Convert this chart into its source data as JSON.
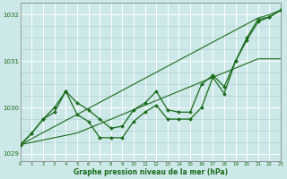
{
  "x": [
    0,
    1,
    2,
    3,
    4,
    5,
    6,
    7,
    8,
    9,
    10,
    11,
    12,
    13,
    14,
    15,
    16,
    17,
    18,
    19,
    20,
    21,
    22,
    23
  ],
  "line_main": [
    1029.2,
    1029.45,
    1029.75,
    1029.9,
    1030.35,
    1029.85,
    1029.7,
    1029.35,
    1029.35,
    1029.35,
    1029.7,
    1029.9,
    1030.05,
    1029.75,
    1029.75,
    1029.75,
    1030.0,
    1030.65,
    1030.3,
    1031.0,
    1031.5,
    1031.9,
    1031.95,
    1032.1
  ],
  "line_secondary": [
    1029.2,
    1029.45,
    1029.75,
    1030.0,
    1030.35,
    1030.1,
    1029.95,
    1029.75,
    1029.55,
    1029.6,
    1029.95,
    1030.1,
    1030.35,
    1029.95,
    1029.9,
    1029.9,
    1030.5,
    1030.7,
    1030.45,
    1031.0,
    1031.45,
    1031.85,
    1031.95,
    1032.1
  ],
  "line_trend1": [
    1029.2,
    1029.33,
    1029.46,
    1029.59,
    1029.72,
    1029.85,
    1029.98,
    1030.11,
    1030.24,
    1030.37,
    1030.5,
    1030.63,
    1030.76,
    1030.89,
    1031.02,
    1031.15,
    1031.28,
    1031.41,
    1031.54,
    1031.67,
    1031.8,
    1031.93,
    1032.0,
    1032.1
  ],
  "line_trend2": [
    1029.2,
    1029.25,
    1029.3,
    1029.35,
    1029.4,
    1029.45,
    1029.55,
    1029.65,
    1029.75,
    1029.85,
    1029.95,
    1030.05,
    1030.15,
    1030.25,
    1030.35,
    1030.45,
    1030.55,
    1030.65,
    1030.75,
    1030.85,
    1030.95,
    1031.05,
    1031.05,
    1031.05
  ],
  "ylim": [
    1028.85,
    1032.25
  ],
  "xlim": [
    0,
    23
  ],
  "yticks": [
    1029,
    1030,
    1031,
    1032
  ],
  "xticks": [
    0,
    1,
    2,
    3,
    4,
    5,
    6,
    7,
    8,
    9,
    10,
    11,
    12,
    13,
    14,
    15,
    16,
    17,
    18,
    19,
    20,
    21,
    22,
    23
  ],
  "xlabel": "Graphe pression niveau de la mer (hPa)",
  "bg_color": "#cce8e8",
  "line_color": "#1a6b1a",
  "grid_minor_color": "#aacccc",
  "grid_major_color": "#ffffff"
}
